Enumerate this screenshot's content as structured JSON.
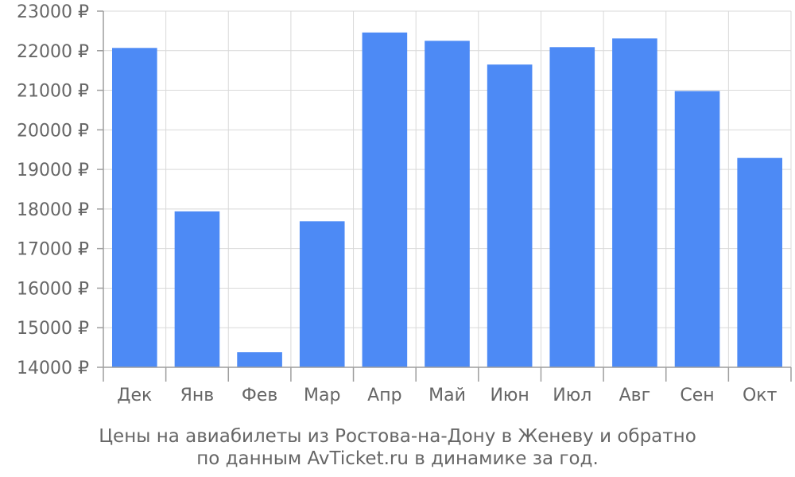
{
  "chart_data": {
    "type": "bar",
    "categories": [
      "Дек",
      "Янв",
      "Фев",
      "Мар",
      "Апр",
      "Май",
      "Июн",
      "Июл",
      "Авг",
      "Сен",
      "Окт"
    ],
    "values": [
      22070,
      17940,
      14380,
      17690,
      22460,
      22250,
      21650,
      22090,
      22310,
      20980,
      19290
    ],
    "ylim": [
      14000,
      23000
    ],
    "yticks": [
      14000,
      15000,
      16000,
      17000,
      18000,
      19000,
      20000,
      21000,
      22000,
      23000
    ],
    "currency_suffix": " ₽",
    "bar_color": "#4d8af5",
    "grid": true,
    "caption_lines": [
      "Цены на авиабилеты из Ростова-на-Дону в Женеву и обратно",
      "по данным AvTicket.ru в динамике за год."
    ]
  }
}
